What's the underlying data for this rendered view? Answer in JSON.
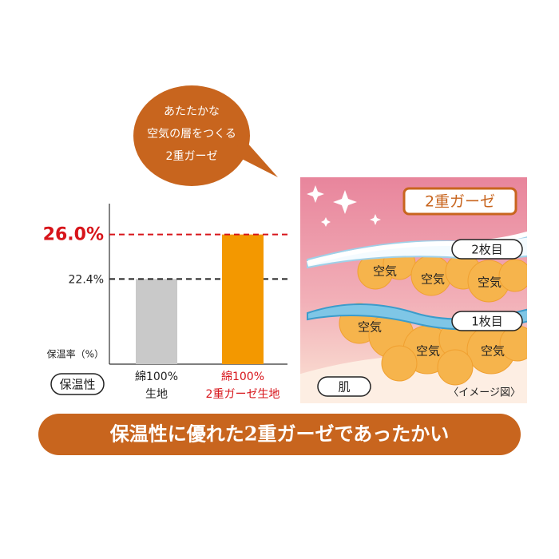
{
  "bubble": {
    "lines": [
      "あたたかな",
      "空気の層をつくる",
      "2重ガーゼ"
    ]
  },
  "chart_data": {
    "type": "bar",
    "y_label": "保温率（%）",
    "feature_label": "保温性",
    "categories": [
      [
        "綿100%",
        "生地"
      ],
      [
        "綿100%",
        "2重ガーゼ生地"
      ]
    ],
    "values": [
      22.4,
      26.0
    ],
    "value_labels": [
      "22.4%",
      "26.0%"
    ],
    "colors": [
      "#c9c9c9",
      "#f39800"
    ],
    "label_colors": [
      "#222222",
      "#d7141a"
    ],
    "ylim": [
      15.5,
      28.5
    ]
  },
  "diagram": {
    "title": "2重ガーゼ",
    "layer2": "2枚目",
    "layer1": "1枚目",
    "air": [
      "空気",
      "空気",
      "空気",
      "空気",
      "空気",
      "空気"
    ],
    "skin": "肌",
    "caption": "〈イメージ図〉"
  },
  "banner": "保温性に優れた2重ガーゼであったかい"
}
